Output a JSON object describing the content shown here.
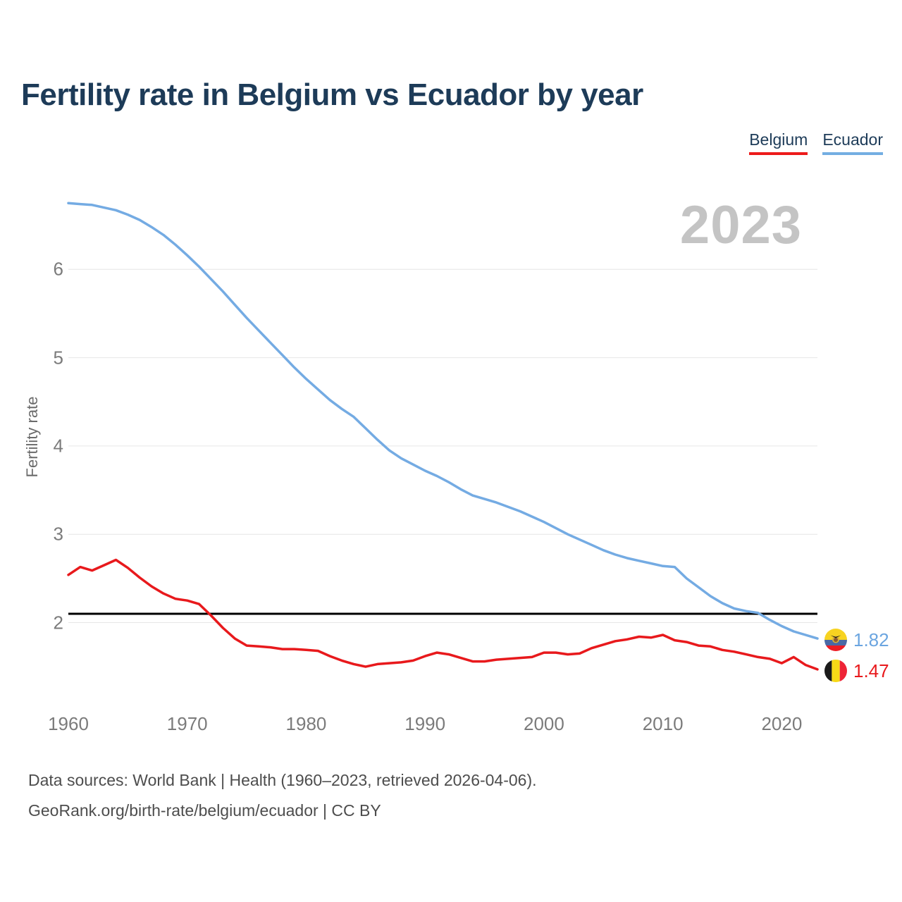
{
  "header": {
    "title": "Fertility rate in Belgium vs Ecuador by year"
  },
  "legend": {
    "items": [
      {
        "label": "Belgium",
        "color": "#ed1b1b"
      },
      {
        "label": "Ecuador",
        "color": "#74aee2"
      }
    ]
  },
  "watermark": "2023",
  "axes": {
    "y_label": "Fertility rate",
    "x_ticks": [
      1960,
      1970,
      1980,
      1990,
      2000,
      2010,
      2020
    ],
    "y_ticks": [
      2,
      3,
      4,
      5,
      6
    ]
  },
  "end_labels": [
    {
      "series": "Ecuador",
      "value": "1.82",
      "color": "#6ba5e0",
      "flag": "ecuador-flag"
    },
    {
      "series": "Belgium",
      "value": "1.47",
      "color": "#e8191c",
      "flag": "belgium-flag"
    }
  ],
  "footer": {
    "line1": "Data sources: World Bank | Health (1960–2023, retrieved 2026-04-06).",
    "line2": "GeoRank.org/birth-rate/belgium/ecuador | CC BY"
  },
  "chart_data": {
    "type": "line",
    "title": "Fertility rate in Belgium vs Ecuador by year",
    "xlabel": "",
    "ylabel": "Fertility rate",
    "x": [
      1960,
      1961,
      1962,
      1963,
      1964,
      1965,
      1966,
      1967,
      1968,
      1969,
      1970,
      1971,
      1972,
      1973,
      1974,
      1975,
      1976,
      1977,
      1978,
      1979,
      1980,
      1981,
      1982,
      1983,
      1984,
      1985,
      1986,
      1987,
      1988,
      1989,
      1990,
      1991,
      1992,
      1993,
      1994,
      1995,
      1996,
      1997,
      1998,
      1999,
      2000,
      2001,
      2002,
      2003,
      2004,
      2005,
      2006,
      2007,
      2008,
      2009,
      2010,
      2011,
      2012,
      2013,
      2014,
      2015,
      2016,
      2017,
      2018,
      2019,
      2020,
      2021,
      2022,
      2023
    ],
    "series": [
      {
        "name": "Belgium",
        "color": "#e8191c",
        "values": [
          2.54,
          2.63,
          2.59,
          2.65,
          2.71,
          2.62,
          2.51,
          2.41,
          2.33,
          2.27,
          2.25,
          2.21,
          2.08,
          1.94,
          1.82,
          1.74,
          1.73,
          1.72,
          1.7,
          1.7,
          1.69,
          1.68,
          1.62,
          1.57,
          1.53,
          1.5,
          1.53,
          1.54,
          1.55,
          1.57,
          1.62,
          1.66,
          1.64,
          1.6,
          1.56,
          1.56,
          1.58,
          1.59,
          1.6,
          1.61,
          1.66,
          1.66,
          1.64,
          1.65,
          1.71,
          1.75,
          1.79,
          1.81,
          1.84,
          1.83,
          1.86,
          1.8,
          1.78,
          1.74,
          1.73,
          1.69,
          1.67,
          1.64,
          1.61,
          1.59,
          1.54,
          1.61,
          1.52,
          1.47
        ]
      },
      {
        "name": "Ecuador",
        "color": "#74abe3",
        "values": [
          6.75,
          6.74,
          6.73,
          6.7,
          6.67,
          6.62,
          6.56,
          6.48,
          6.39,
          6.28,
          6.16,
          6.03,
          5.89,
          5.75,
          5.6,
          5.45,
          5.31,
          5.17,
          5.03,
          4.89,
          4.76,
          4.64,
          4.52,
          4.42,
          4.33,
          4.2,
          4.07,
          3.95,
          3.86,
          3.79,
          3.72,
          3.66,
          3.59,
          3.51,
          3.44,
          3.4,
          3.36,
          3.31,
          3.26,
          3.2,
          3.14,
          3.07,
          3.0,
          2.94,
          2.88,
          2.82,
          2.77,
          2.73,
          2.7,
          2.67,
          2.64,
          2.63,
          2.5,
          2.4,
          2.3,
          2.22,
          2.16,
          2.13,
          2.11,
          2.03,
          1.96,
          1.9,
          1.86,
          1.82
        ]
      }
    ],
    "reference_line": {
      "value": 2.1,
      "color": "#000000"
    },
    "x_ticks": [
      1960,
      1970,
      1980,
      1990,
      2000,
      2010,
      2020
    ],
    "y_ticks": [
      2,
      3,
      4,
      5,
      6
    ],
    "ylim": [
      1.3,
      6.9
    ],
    "xlim": [
      1960,
      2023
    ],
    "grid": "horizontal",
    "legend_position": "top-right",
    "end_year_label": "2023"
  }
}
